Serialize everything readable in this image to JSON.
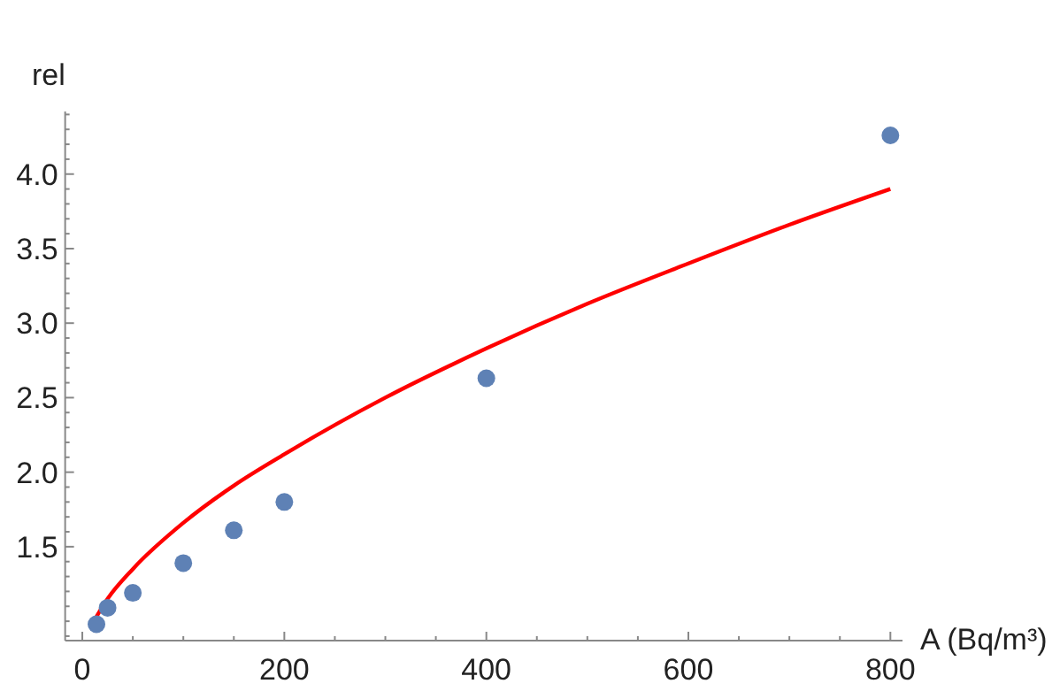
{
  "chart_data": {
    "type": "scatter",
    "xlabel": "A (Bq/m³)",
    "ylabel": "rel",
    "xlim": [
      -17,
      812
    ],
    "ylim": [
      0.87,
      4.42
    ],
    "xticks": [
      0,
      {
        "value": 50,
        "label": null
      },
      {
        "value": 100,
        "label": null
      },
      {
        "value": 150,
        "label": null
      },
      200,
      {
        "value": 250,
        "label": null
      },
      {
        "value": 300,
        "label": null
      },
      {
        "value": 350,
        "label": null
      },
      400,
      {
        "value": 450,
        "label": null
      },
      {
        "value": 500,
        "label": null
      },
      {
        "value": 550,
        "label": null
      },
      600,
      {
        "value": 650,
        "label": null
      },
      {
        "value": 700,
        "label": null
      },
      {
        "value": 750,
        "label": null
      },
      800
    ],
    "yticks": [
      {
        "value": 0.9,
        "label": null
      },
      {
        "value": 1.0,
        "label": null
      },
      {
        "value": 1.1,
        "label": null
      },
      {
        "value": 1.2,
        "label": null
      },
      {
        "value": 1.3,
        "label": null
      },
      {
        "value": 1.4,
        "label": null
      },
      {
        "value": 1.5,
        "label": "1.5"
      },
      {
        "value": 1.6,
        "label": null
      },
      {
        "value": 1.7,
        "label": null
      },
      {
        "value": 1.8,
        "label": null
      },
      {
        "value": 1.9,
        "label": null
      },
      {
        "value": 2.0,
        "label": "2.0"
      },
      {
        "value": 2.1,
        "label": null
      },
      {
        "value": 2.2,
        "label": null
      },
      {
        "value": 2.3,
        "label": null
      },
      {
        "value": 2.4,
        "label": null
      },
      {
        "value": 2.5,
        "label": "2.5"
      },
      {
        "value": 2.6,
        "label": null
      },
      {
        "value": 2.7,
        "label": null
      },
      {
        "value": 2.8,
        "label": null
      },
      {
        "value": 2.9,
        "label": null
      },
      {
        "value": 3.0,
        "label": "3.0"
      },
      {
        "value": 3.1,
        "label": null
      },
      {
        "value": 3.2,
        "label": null
      },
      {
        "value": 3.3,
        "label": null
      },
      {
        "value": 3.4,
        "label": null
      },
      {
        "value": 3.5,
        "label": "3.5"
      },
      {
        "value": 3.6,
        "label": null
      },
      {
        "value": 3.7,
        "label": null
      },
      {
        "value": 3.8,
        "label": null
      },
      {
        "value": 3.9,
        "label": null
      },
      {
        "value": 4.0,
        "label": "4.0"
      },
      {
        "value": 4.1,
        "label": null
      },
      {
        "value": 4.2,
        "label": null
      },
      {
        "value": 4.3,
        "label": null
      },
      {
        "value": 4.4,
        "label": null
      }
    ],
    "grid": false,
    "marker": "circle",
    "series": [
      {
        "color": "#5e81b5",
        "x": [
          14,
          25,
          50,
          100,
          150,
          200,
          400,
          800
        ],
        "values": [
          0.98,
          1.09,
          1.19,
          1.39,
          1.61,
          1.8,
          2.63,
          4.26
        ]
      },
      {
        "type": "line",
        "color": "#ff0000",
        "line_style": "solid",
        "marker": "none",
        "x": [
          14,
          25,
          50,
          100,
          150,
          200,
          300,
          400,
          500,
          600,
          700,
          800
        ],
        "values": [
          1.03,
          1.15,
          1.35,
          1.66,
          1.91,
          2.12,
          2.5,
          2.83,
          3.13,
          3.4,
          3.66,
          3.9
        ]
      }
    ]
  }
}
